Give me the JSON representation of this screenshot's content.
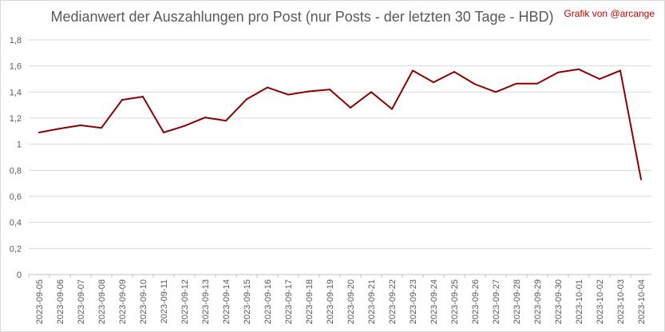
{
  "chart_data": {
    "type": "line",
    "title": "Medianwert der Auszahlungen pro Post (nur Posts - der letzten 30 Tage - HBD)",
    "credit": "Grafik von @arcange",
    "xlabel": "",
    "ylabel": "",
    "ylim": [
      0,
      1.8
    ],
    "y_ticks": [
      "0",
      "0,2",
      "0,4",
      "0,6",
      "0,8",
      "1",
      "1,2",
      "1,4",
      "1,6",
      "1,8"
    ],
    "y_tick_values": [
      0,
      0.2,
      0.4,
      0.6,
      0.8,
      1.0,
      1.2,
      1.4,
      1.6,
      1.8
    ],
    "grid": true,
    "legend": "none",
    "line_color": "#8b0000",
    "categories": [
      "2023-09-05",
      "2023-09-06",
      "2023-09-07",
      "2023-09-08",
      "2023-09-09",
      "2023-09-10",
      "2023-09-11",
      "2023-09-12",
      "2023-09-13",
      "2023-09-14",
      "2023-09-15",
      "2023-09-16",
      "2023-09-17",
      "2023-09-18",
      "2023-09-19",
      "2023-09-20",
      "2023-09-21",
      "2023-09-22",
      "2023-09-23",
      "2023-09-24",
      "2023-09-25",
      "2023-09-26",
      "2023-09-27",
      "2023-09-28",
      "2023-09-29",
      "2023-09-30",
      "2023-10-01",
      "2023-10-02",
      "2023-10-03",
      "2023-10-04"
    ],
    "values": [
      1.09,
      1.12,
      1.145,
      1.125,
      1.34,
      1.365,
      1.09,
      1.14,
      1.205,
      1.18,
      1.345,
      1.435,
      1.38,
      1.405,
      1.42,
      1.28,
      1.4,
      1.27,
      1.565,
      1.475,
      1.555,
      1.46,
      1.4,
      1.465,
      1.465,
      1.55,
      1.575,
      1.5,
      1.565,
      0.73
    ]
  }
}
